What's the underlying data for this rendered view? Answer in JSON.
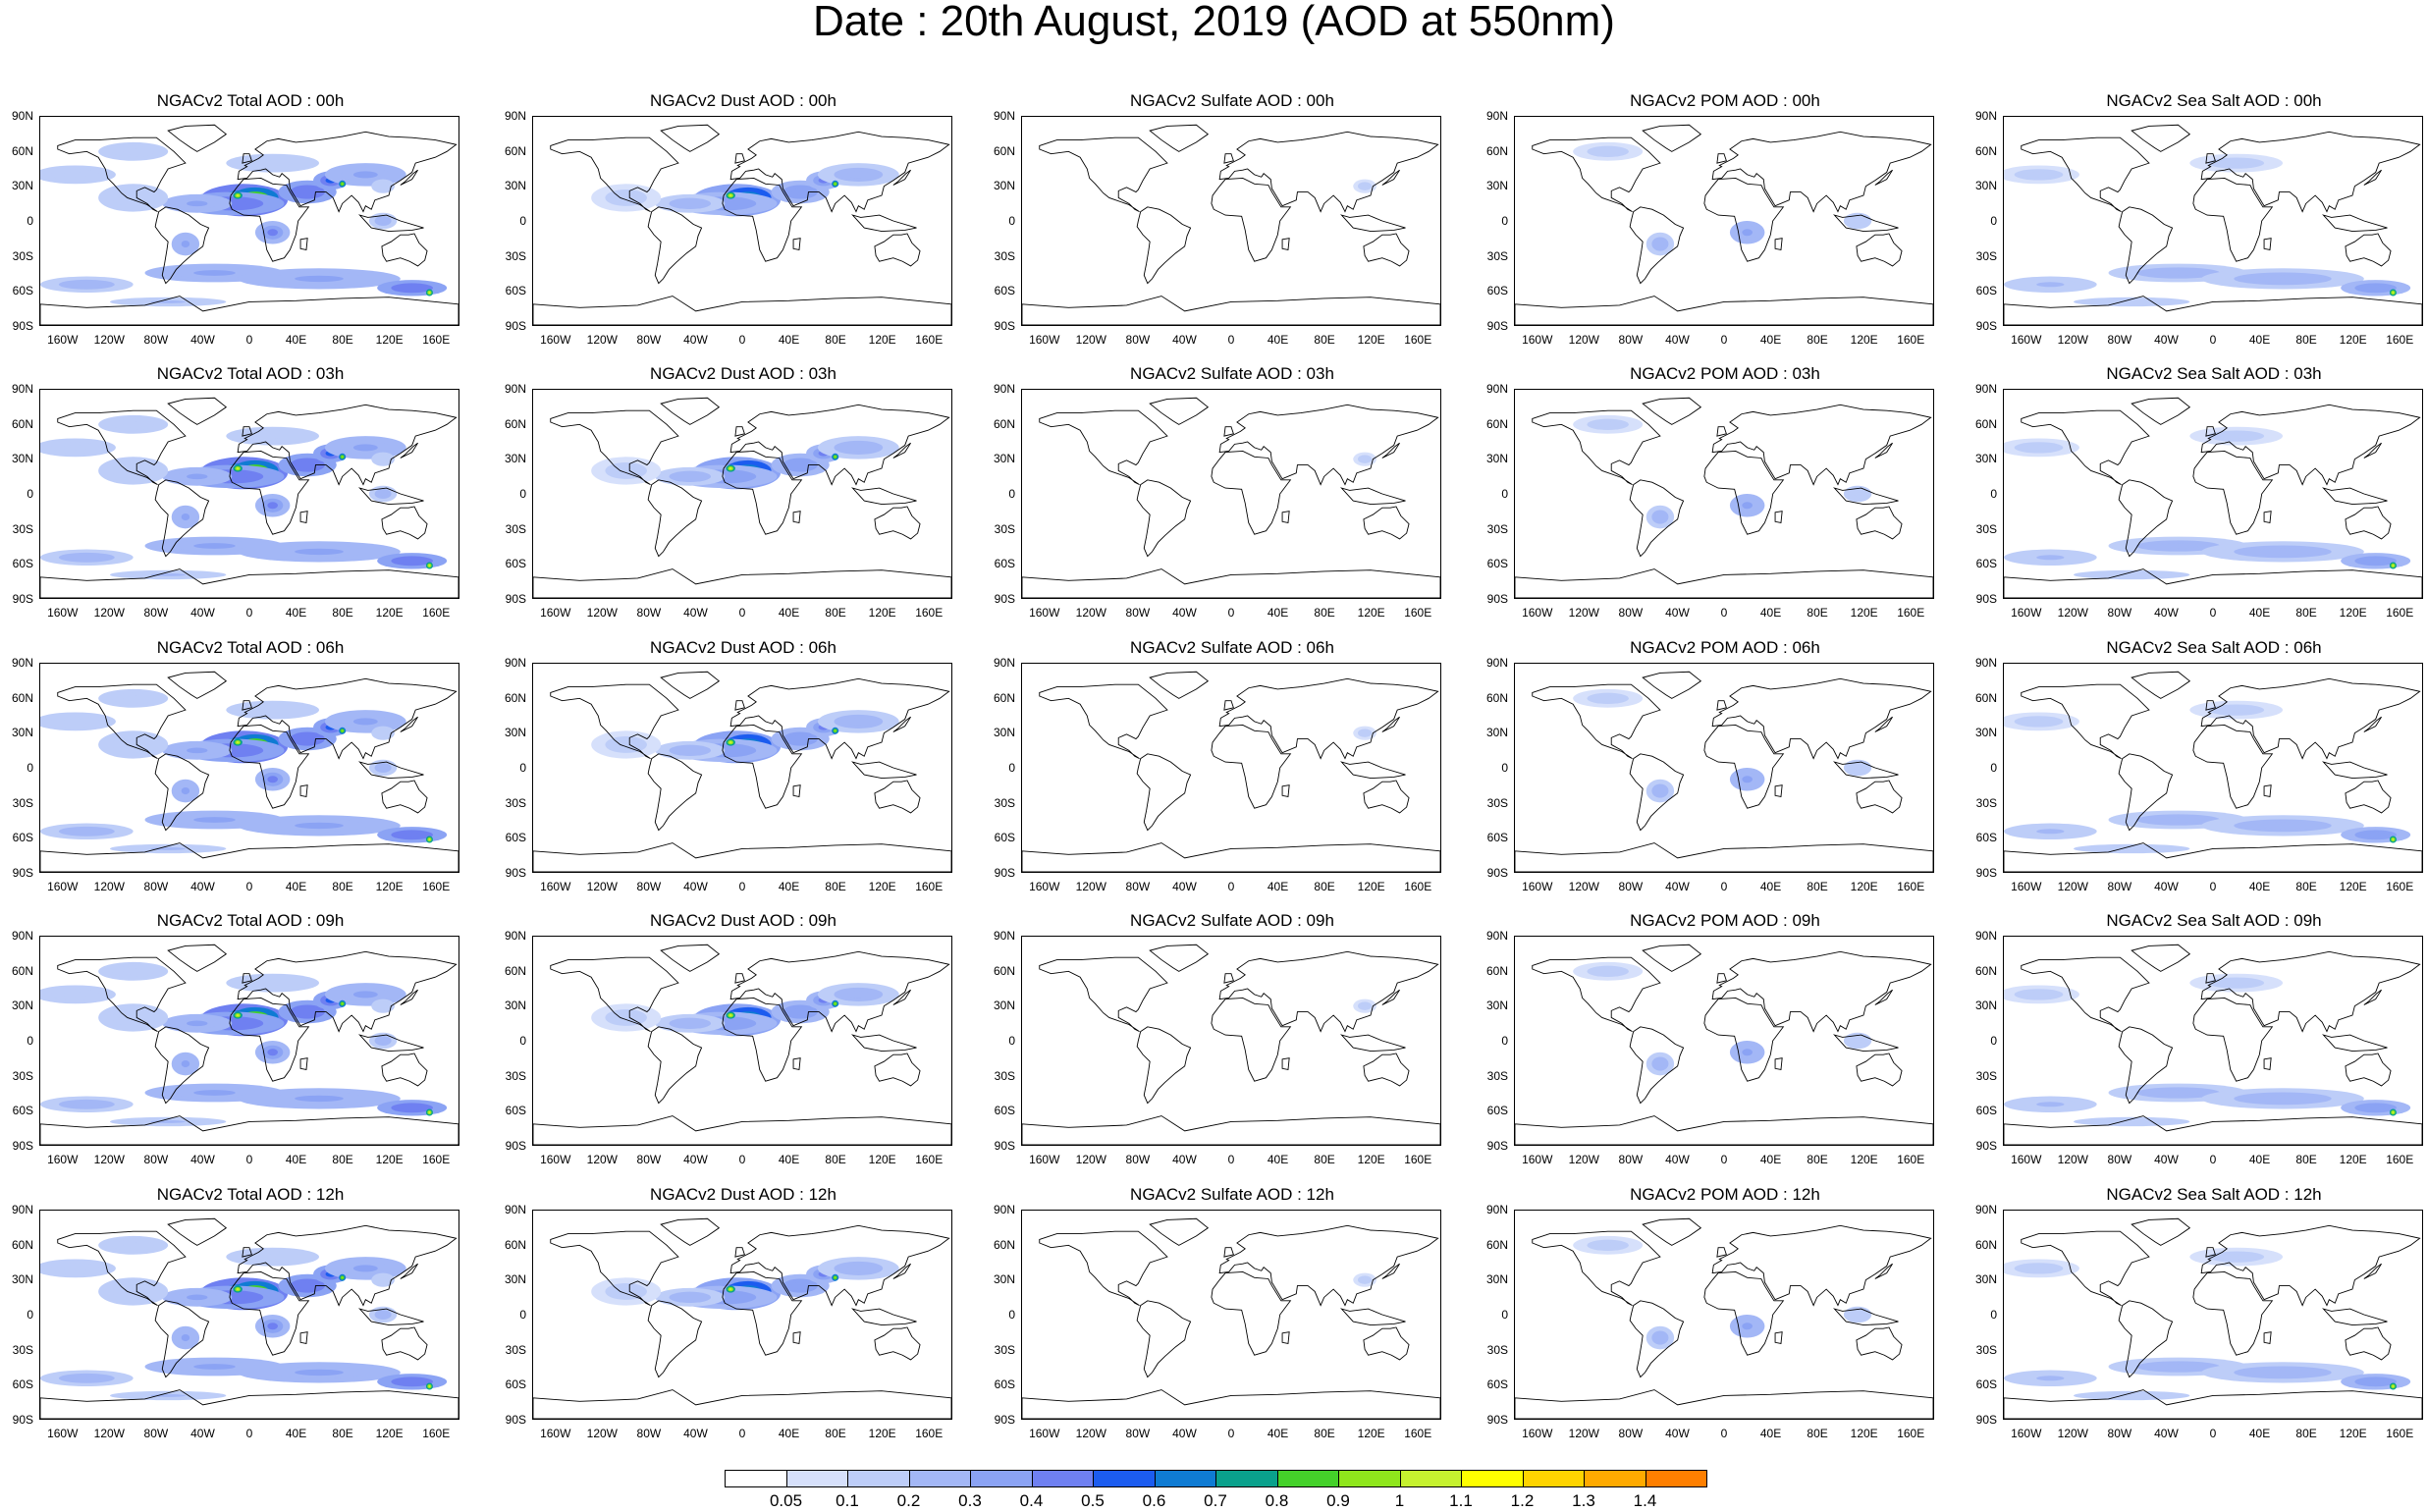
{
  "title": "Date : 20th August, 2019 (AOD at 550nm)",
  "panels": [
    [
      "NGACv2 Total AOD : 00h",
      "NGACv2 Dust AOD : 00h",
      "NGACv2 Sulfate AOD : 00h",
      "NGACv2 POM AOD : 00h",
      "NGACv2 Sea Salt AOD : 00h"
    ],
    [
      "NGACv2 Total AOD : 03h",
      "NGACv2 Dust AOD : 03h",
      "NGACv2 Sulfate AOD : 03h",
      "NGACv2 POM AOD : 03h",
      "NGACv2 Sea Salt AOD : 03h"
    ],
    [
      "NGACv2 Total AOD : 06h",
      "NGACv2 Dust AOD : 06h",
      "NGACv2 Sulfate AOD : 06h",
      "NGACv2 POM AOD : 06h",
      "NGACv2 Sea Salt AOD : 06h"
    ],
    [
      "NGACv2 Total AOD : 09h",
      "NGACv2 Dust AOD : 09h",
      "NGACv2 Sulfate AOD : 09h",
      "NGACv2 POM AOD : 09h",
      "NGACv2 Sea Salt  AOD : 09h"
    ],
    [
      "NGACv2 Total AOD : 12h",
      "NGACv2 Dust AOD : 12h",
      "NGACv2 Sulfate AOD : 12h",
      "NGACv2 POM  AOD : 12h",
      "NGACv2 Sea Salt AOD : 12h"
    ]
  ],
  "lat_labels": [
    "90N",
    "60N",
    "30N",
    "0",
    "30S",
    "60S",
    "90S"
  ],
  "lon_labels": [
    "160W",
    "120W",
    "80W",
    "40W",
    "0",
    "40E",
    "80E",
    "120E",
    "160E"
  ],
  "colorbar": {
    "labels": [
      "0.05",
      "0.1",
      "0.2",
      "0.3",
      "0.4",
      "0.5",
      "0.6",
      "0.7",
      "0.8",
      "0.9",
      "1",
      "1.1",
      "1.2",
      "1.3",
      "1.4"
    ],
    "colors": [
      "#ffffff",
      "#d6e0fb",
      "#bdcdf8",
      "#a3b7f6",
      "#8ba3f4",
      "#6f80f1",
      "#1c5cef",
      "#0f7bd3",
      "#0aa18c",
      "#44d12a",
      "#8fe61c",
      "#c6f22f",
      "#ffff00",
      "#ffd400",
      "#ffaa00",
      "#ff7f00",
      "#ff5500",
      "#ff1e00"
    ]
  },
  "species_intensity": {
    "Total": 1.0,
    "Dust": 0.8,
    "Sulfate": 0.05,
    "POM": 0.25,
    "Sea Salt": 0.6
  }
}
